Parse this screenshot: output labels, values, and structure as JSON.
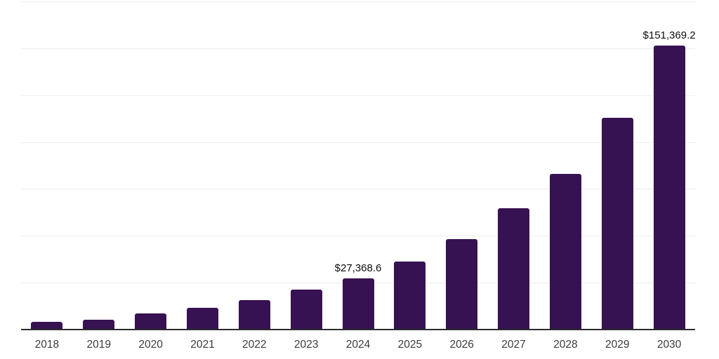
{
  "chart_data": {
    "type": "bar",
    "title": "",
    "xlabel": "",
    "ylabel": "",
    "categories": [
      "2018",
      "2019",
      "2020",
      "2021",
      "2022",
      "2023",
      "2024",
      "2025",
      "2026",
      "2027",
      "2028",
      "2029",
      "2030"
    ],
    "values": [
      4100,
      5200,
      8600,
      11600,
      15700,
      21300,
      27368.6,
      36300,
      48200,
      64700,
      83000,
      112900,
      151369.2
    ],
    "data_labels": {
      "2024": "$27,368.6",
      "2030": "$151,369.2"
    },
    "ylim": [
      0,
      175000
    ],
    "gridline_interval": 25000,
    "grid": true,
    "legend": false,
    "y_tick_labels_visible": false,
    "colors": {
      "bar": "#371252",
      "gridline": "#ededed",
      "axis_line": "#2b2b2b",
      "value_label": "#0d0d0d",
      "tick_label": "#3b3b3b",
      "background": "#ffffff"
    }
  }
}
